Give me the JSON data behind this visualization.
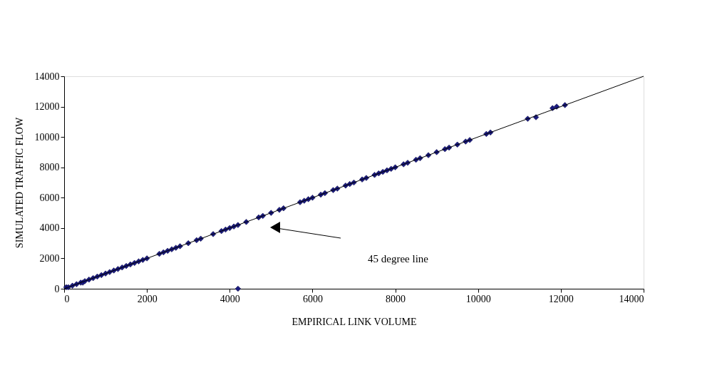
{
  "chart_data": {
    "type": "scatter",
    "xlabel": "EMPIRICAL LINK VOLUME",
    "ylabel": "SIMULATED TRAFFIC FLOW",
    "xlim": [
      0,
      14000
    ],
    "ylim": [
      0,
      14000
    ],
    "xticks": [
      0,
      2000,
      4000,
      6000,
      8000,
      10000,
      12000,
      14000
    ],
    "yticks": [
      0,
      2000,
      4000,
      6000,
      8000,
      10000,
      12000,
      14000
    ],
    "grid": false,
    "marker": "diamond",
    "series": [
      {
        "color": "#1a1a80",
        "x": [
          50,
          100,
          200,
          300,
          400,
          450,
          500,
          600,
          700,
          800,
          900,
          1000,
          1100,
          1200,
          1300,
          1400,
          1500,
          1600,
          1700,
          1800,
          1900,
          2000,
          2300,
          2400,
          2500,
          2600,
          2700,
          2800,
          3000,
          3200,
          3300,
          3600,
          3800,
          3900,
          4000,
          4100,
          4200,
          4400,
          4700,
          4800,
          5000,
          5200,
          5300,
          5700,
          5800,
          5900,
          6000,
          6200,
          6300,
          6500,
          6600,
          6800,
          6900,
          7000,
          7200,
          7300,
          7500,
          7600,
          7700,
          7800,
          7900,
          8000,
          8200,
          8300,
          8500,
          8600,
          8800,
          9000,
          9200,
          9300,
          9500,
          9700,
          9800,
          10200,
          10300,
          11200,
          11400,
          11800,
          11900,
          12100,
          4200
        ],
        "values": [
          100,
          100,
          200,
          300,
          400,
          400,
          500,
          600,
          700,
          800,
          900,
          1000,
          1100,
          1200,
          1300,
          1400,
          1500,
          1600,
          1700,
          1800,
          1900,
          2000,
          2300,
          2400,
          2500,
          2600,
          2700,
          2800,
          3000,
          3200,
          3300,
          3600,
          3800,
          3900,
          4000,
          4100,
          4200,
          4400,
          4700,
          4800,
          5000,
          5200,
          5300,
          5700,
          5800,
          5900,
          6000,
          6200,
          6300,
          6500,
          6600,
          6800,
          6900,
          7000,
          7200,
          7300,
          7500,
          7600,
          7700,
          7800,
          7900,
          8000,
          8200,
          8300,
          8500,
          8600,
          8800,
          9000,
          9200,
          9300,
          9500,
          9700,
          9800,
          10200,
          10300,
          11200,
          11300,
          11900,
          12000,
          12100,
          0
        ]
      },
      {
        "color": "#000000",
        "type": "line",
        "marker": "none",
        "line_style": "solid",
        "x": [
          0,
          14000
        ],
        "values": [
          0,
          14000
        ]
      }
    ],
    "annotations": [
      "45 degree line"
    ]
  }
}
